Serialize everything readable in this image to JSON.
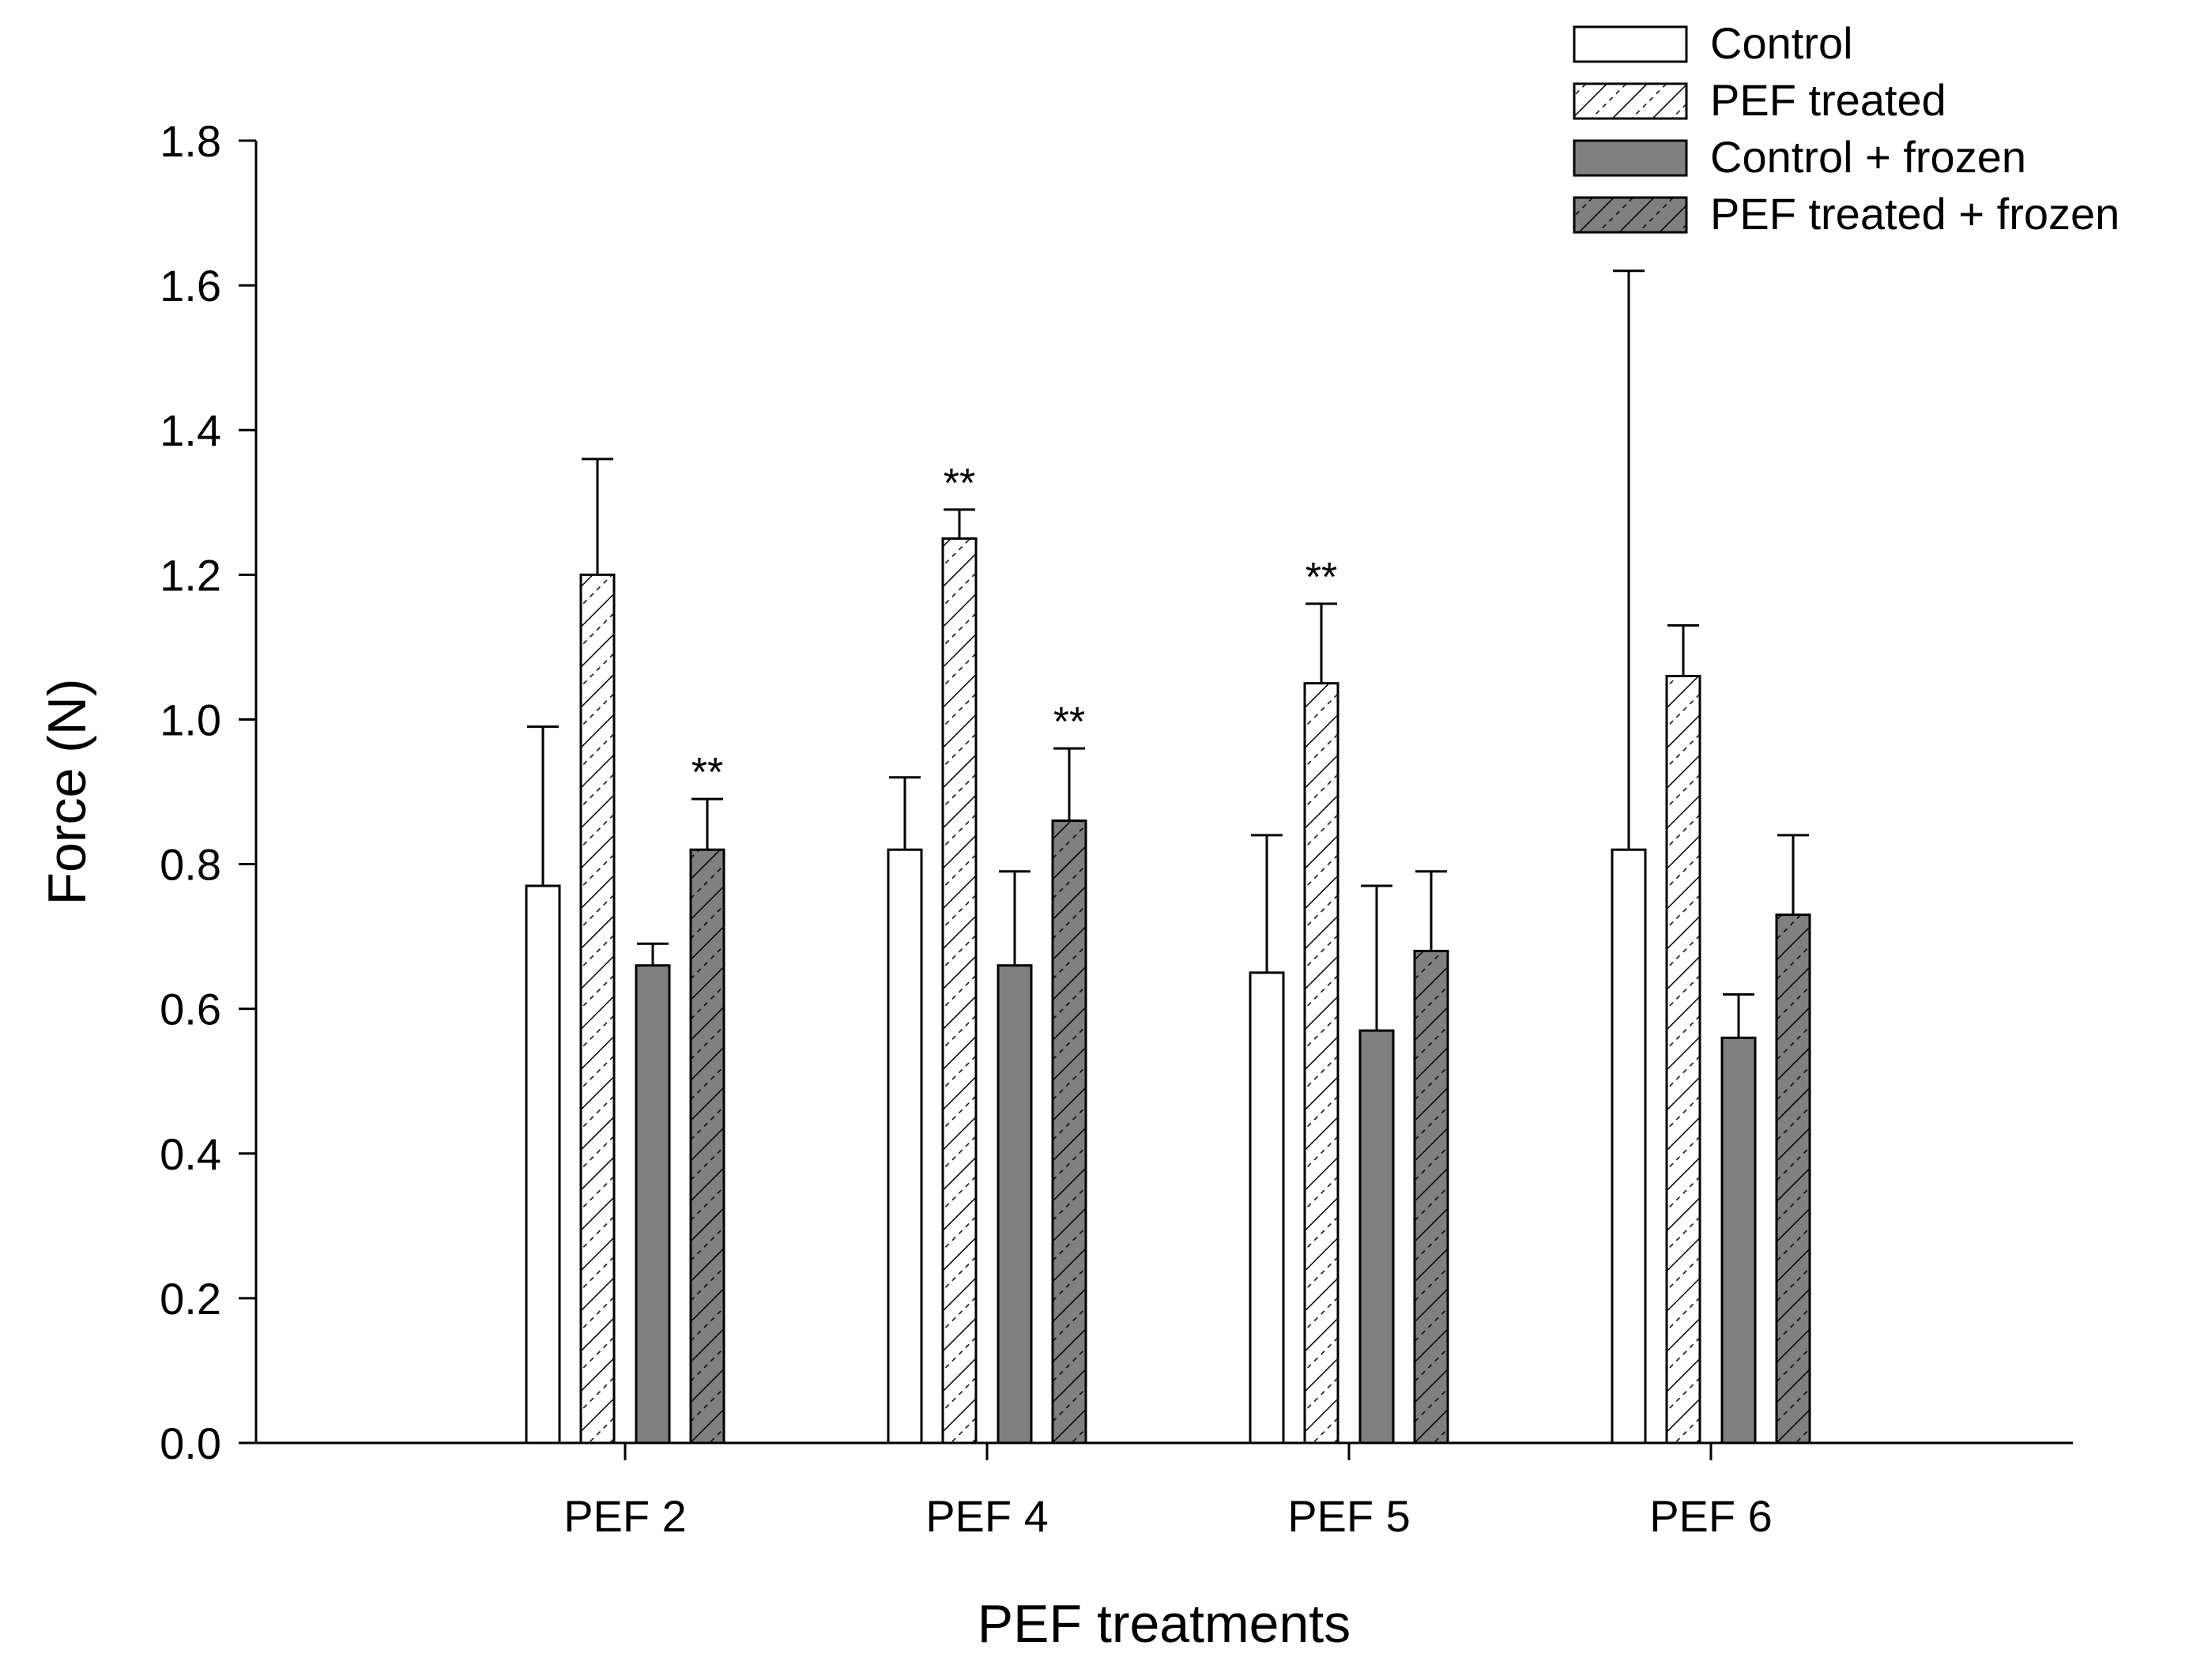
{
  "chart_data": {
    "type": "bar",
    "title": "",
    "xlabel": "PEF treatments",
    "ylabel": "Force (N)",
    "ylim": [
      0,
      1.8
    ],
    "yticks": [
      "0.0",
      "0.2",
      "0.4",
      "0.6",
      "0.8",
      "1.0",
      "1.2",
      "1.4",
      "1.6",
      "1.8"
    ],
    "categories": [
      "PEF 2",
      "PEF 4",
      "PEF 5",
      "PEF 6"
    ],
    "legend_position": "top-right",
    "grid": false,
    "series": [
      {
        "name": "Control",
        "style": "white",
        "values": [
          0.77,
          0.82,
          0.65,
          0.82
        ],
        "errors": [
          0.22,
          0.1,
          0.19,
          0.8
        ],
        "significance": [
          "",
          "",
          "",
          ""
        ]
      },
      {
        "name": "PEF treated",
        "style": "white-hatched",
        "values": [
          1.2,
          1.25,
          1.05,
          1.06
        ],
        "errors": [
          0.16,
          0.04,
          0.11,
          0.07
        ],
        "significance": [
          "",
          "**",
          "**",
          ""
        ]
      },
      {
        "name": "Control + frozen",
        "style": "gray",
        "values": [
          0.66,
          0.66,
          0.57,
          0.56
        ],
        "errors": [
          0.03,
          0.13,
          0.2,
          0.06
        ],
        "significance": [
          "",
          "",
          "",
          ""
        ]
      },
      {
        "name": "PEF treated + frozen",
        "style": "gray-hatched",
        "values": [
          0.82,
          0.86,
          0.68,
          0.73
        ],
        "errors": [
          0.07,
          0.1,
          0.11,
          0.11
        ],
        "significance": [
          "**",
          "**",
          "",
          ""
        ]
      }
    ],
    "colors": {
      "white": "#ffffff",
      "gray": "#808080",
      "stroke": "#000000"
    }
  }
}
